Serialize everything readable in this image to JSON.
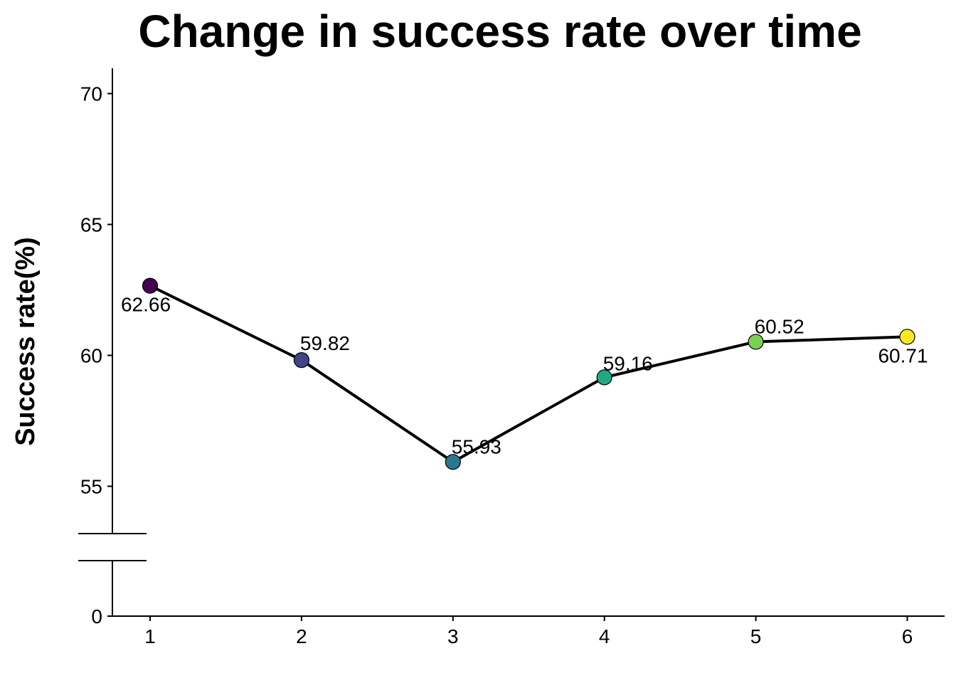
{
  "chart_data": {
    "type": "line",
    "title": "Change in success rate over time",
    "xlabel": "",
    "ylabel": "Success rate(%)",
    "categories": [
      "1",
      "2",
      "3",
      "4",
      "5",
      "6"
    ],
    "x": [
      1,
      2,
      3,
      4,
      5,
      6
    ],
    "values": [
      62.66,
      59.82,
      55.93,
      59.16,
      60.52,
      60.71
    ],
    "data_labels": [
      "62.66",
      "59.82",
      "55.93",
      "59.16",
      "60.52",
      "60.71"
    ],
    "point_colors": [
      "#440154",
      "#414487",
      "#2A788E",
      "#22A884",
      "#7AD151",
      "#FDE725"
    ],
    "line_color": "#000000",
    "y_ticks": [
      0,
      55,
      60,
      65,
      70
    ],
    "y_tick_labels": [
      "0",
      "55",
      "60",
      "65",
      "70"
    ],
    "y_axis_break": true,
    "ylim": [
      0,
      71
    ],
    "grid": false,
    "legend": "none"
  }
}
